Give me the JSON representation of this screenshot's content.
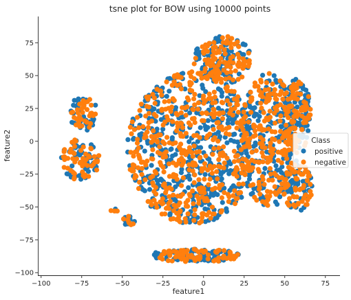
{
  "chart_data": {
    "type": "scatter",
    "title": "tsne plot for BOW using 10000 points",
    "xlabel": "feature1",
    "ylabel": "feature2",
    "xlim": [
      -102,
      84
    ],
    "ylim": [
      -102,
      95
    ],
    "xticks": [
      -100,
      -75,
      -50,
      -25,
      0,
      25,
      50,
      75
    ],
    "yticks": [
      -100,
      -75,
      -50,
      -25,
      0,
      25,
      50,
      75
    ],
    "grid": false,
    "legend": {
      "title": "Class",
      "placement": "right",
      "entries": [
        "positive",
        "negative"
      ]
    },
    "series": [
      {
        "name": "positive",
        "color": "#1f77b4"
      },
      {
        "name": "negative",
        "color": "#ff7f0e"
      }
    ],
    "clusters": [
      {
        "label": "upper-left group",
        "cx": -74,
        "cy": 21,
        "rx": 9,
        "ry": 13,
        "n": 70
      },
      {
        "label": "left group",
        "cx": -76,
        "cy": -14,
        "rx": 12,
        "ry": 16,
        "n": 110
      },
      {
        "label": "lower-left small",
        "cx": -46,
        "cy": -61,
        "rx": 4,
        "ry": 4,
        "n": 14
      },
      {
        "label": "lower-left dot",
        "cx": -55,
        "cy": -53,
        "rx": 2,
        "ry": 2,
        "n": 5
      },
      {
        "label": "central mass",
        "cx": -7,
        "cy": -5,
        "rx": 40,
        "ry": 58,
        "n": 950
      },
      {
        "label": "top-center lobe",
        "cx": 12,
        "cy": 62,
        "rx": 18,
        "ry": 18,
        "n": 200
      },
      {
        "label": "right mass",
        "cx": 40,
        "cy": 0,
        "rx": 18,
        "ry": 52,
        "n": 400
      },
      {
        "label": "far-right lobe",
        "cx": 58,
        "cy": 20,
        "rx": 8,
        "ry": 28,
        "n": 150
      },
      {
        "label": "far-right lower",
        "cx": 58,
        "cy": -35,
        "rx": 9,
        "ry": 18,
        "n": 110
      },
      {
        "label": "bottom cluster",
        "cx": -5,
        "cy": -87,
        "rx": 28,
        "ry": 5,
        "n": 150
      }
    ]
  }
}
